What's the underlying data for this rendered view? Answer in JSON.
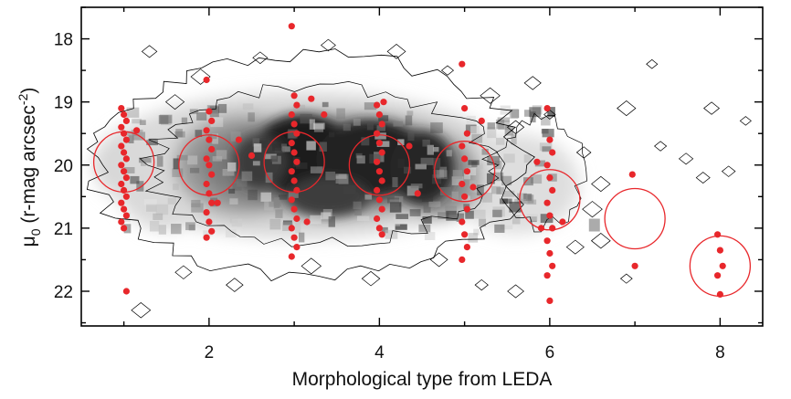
{
  "chart_data": {
    "type": "scatter",
    "title": "",
    "xlabel": "Morphological type from LEDA",
    "ylabel": {
      "main": "μ",
      "sub": "0",
      "rest": " (r-mag arcsec",
      "sup": "-2",
      "end": ")"
    },
    "xlim": [
      0.5,
      8.5
    ],
    "ylim": [
      22.55,
      17.5
    ],
    "x_ticks": [
      2,
      4,
      6,
      8
    ],
    "y_ticks": [
      18,
      19,
      20,
      21,
      22
    ],
    "grid": false,
    "legend": "none",
    "colors": {
      "points": "#e8272b",
      "circles": "#e8272b",
      "density_dark": "#0a0a0a",
      "density_light": "#d4d4d4",
      "contour": "#000000"
    },
    "density_background": "grey-scale 2D density map with contour outlines of the full galaxy sample",
    "red_points_by_type": [
      {
        "x": 1,
        "y": [
          19.1,
          19.2,
          19.3,
          19.4,
          19.5,
          19.6,
          19.7,
          19.8,
          19.9,
          20.0,
          20.1,
          20.2,
          20.3,
          20.4,
          20.5,
          20.6,
          20.7,
          20.8,
          20.9,
          21.0,
          22.0
        ]
      },
      {
        "x": 2,
        "y": [
          18.65,
          19.15,
          19.3,
          19.45,
          19.6,
          19.75,
          19.9,
          20.0,
          20.15,
          20.3,
          20.45,
          20.6,
          20.75,
          20.9,
          21.05,
          21.15
        ]
      },
      {
        "x": 3,
        "y": [
          17.8,
          18.9,
          19.05,
          19.2,
          19.35,
          19.5,
          19.65,
          19.8,
          19.95,
          20.1,
          20.25,
          20.4,
          20.55,
          20.7,
          20.85,
          21.0,
          21.15,
          21.3,
          21.45
        ]
      },
      {
        "x": 4,
        "y": [
          19.05,
          19.2,
          19.35,
          19.5,
          19.65,
          19.8,
          19.95,
          20.1,
          20.25,
          20.4,
          20.55,
          20.7,
          20.85,
          21.0,
          21.1
        ]
      },
      {
        "x": 5,
        "y": [
          18.4,
          19.1,
          19.5,
          19.7,
          19.9,
          20.1,
          20.3,
          20.5,
          20.7,
          20.9,
          21.1,
          21.3,
          21.5
        ]
      },
      {
        "x": 6,
        "y": [
          19.1,
          19.6,
          19.8,
          20.0,
          20.2,
          20.4,
          20.6,
          20.8,
          21.0,
          21.2,
          21.4,
          21.6,
          21.75,
          22.15
        ]
      },
      {
        "x": 7,
        "y": [
          20.15,
          21.6
        ]
      },
      {
        "x": 8,
        "y": [
          21.1,
          21.35,
          21.6,
          21.75,
          22.05
        ]
      }
    ],
    "mean_circles": [
      {
        "x": 1,
        "y": 19.95
      },
      {
        "x": 2,
        "y": 20.0
      },
      {
        "x": 3,
        "y": 19.95
      },
      {
        "x": 4,
        "y": 20.0
      },
      {
        "x": 5,
        "y": 20.1
      },
      {
        "x": 6,
        "y": 20.55
      },
      {
        "x": 7,
        "y": 20.85
      },
      {
        "x": 8,
        "y": 21.6
      }
    ]
  }
}
